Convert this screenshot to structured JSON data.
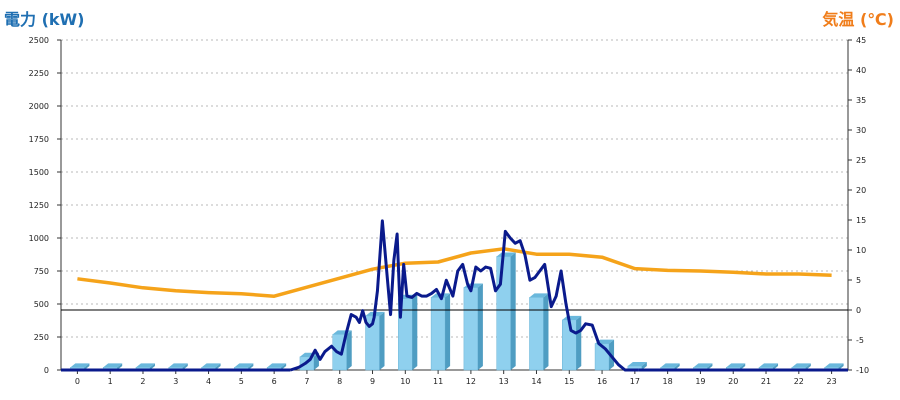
{
  "chart_data": {
    "type": "bar+line",
    "left_axis_title": "電力 (kW)",
    "right_axis_title": "気温 (℃)",
    "colors": {
      "left_title": "#1f6fb2",
      "right_title": "#f07d1a",
      "bars": "#7ec8e8",
      "power_line": "#0a1a8c",
      "temperature_line": "#f5a31a"
    },
    "ylim_left": [
      0,
      2500
    ],
    "ylim_right": [
      -10,
      45
    ],
    "yticks_left": [
      0,
      250,
      500,
      750,
      1000,
      1250,
      1500,
      1750,
      2000,
      2250,
      2500
    ],
    "yticks_right": [
      -10,
      -5,
      0,
      5,
      10,
      15,
      20,
      25,
      30,
      35,
      40,
      45
    ],
    "categories": [
      "0",
      "1",
      "2",
      "3",
      "4",
      "5",
      "6",
      "7",
      "8",
      "9",
      "10",
      "11",
      "12",
      "13",
      "14",
      "15",
      "16",
      "17",
      "18",
      "19",
      "20",
      "21",
      "22",
      "23"
    ],
    "grid": true,
    "bars": [
      20,
      20,
      20,
      20,
      20,
      20,
      20,
      100,
      270,
      410,
      540,
      550,
      625,
      860,
      550,
      380,
      200,
      30,
      20,
      20,
      20,
      20,
      20,
      20
    ],
    "power_line": {
      "x": [
        6.5,
        6.75,
        6.95,
        7.1,
        7.25,
        7.4,
        7.55,
        7.75,
        7.9,
        8.05,
        8.2,
        8.35,
        8.5,
        8.6,
        8.7,
        8.8,
        8.9,
        9.0,
        9.05,
        9.15,
        9.3,
        9.45,
        9.55,
        9.65,
        9.75,
        9.85,
        9.95,
        10.05,
        10.2,
        10.35,
        10.5,
        10.65,
        10.8,
        10.95,
        11.1,
        11.25,
        11.45,
        11.6,
        11.75,
        11.9,
        12.0,
        12.15,
        12.3,
        12.45,
        12.6,
        12.75,
        12.9,
        13.05,
        13.2,
        13.35,
        13.5,
        13.65,
        13.8,
        13.95,
        14.1,
        14.25,
        14.45,
        14.6,
        14.75,
        14.9,
        15.05,
        15.2,
        15.35,
        15.5,
        15.7,
        15.9,
        16.1,
        16.3,
        16.5,
        16.7,
        16.9,
        17.1
      ],
      "values": [
        0,
        20,
        50,
        80,
        150,
        80,
        140,
        180,
        140,
        120,
        280,
        420,
        400,
        360,
        450,
        360,
        330,
        350,
        400,
        600,
        1130,
        700,
        420,
        830,
        1030,
        400,
        800,
        560,
        550,
        580,
        560,
        560,
        580,
        610,
        540,
        680,
        560,
        750,
        800,
        650,
        600,
        780,
        750,
        780,
        770,
        600,
        650,
        1050,
        1000,
        960,
        980,
        870,
        680,
        700,
        750,
        800,
        480,
        560,
        750,
        500,
        300,
        280,
        300,
        350,
        340,
        200,
        160,
        100,
        40,
        0,
        0,
        0
      ]
    },
    "temperature_line": {
      "x": [
        0,
        1,
        2,
        3,
        4,
        5,
        6,
        7,
        8,
        9,
        10,
        11,
        12,
        13,
        14,
        15,
        16,
        17,
        18,
        19,
        20,
        21,
        22,
        23
      ],
      "values": [
        5.2,
        4.5,
        3.7,
        3.2,
        2.9,
        2.7,
        2.3,
        3.8,
        5.3,
        6.8,
        7.8,
        8.0,
        9.5,
        10.2,
        9.3,
        9.3,
        8.8,
        6.9,
        6.6,
        6.5,
        6.3,
        6.0,
        6.0,
        5.8
      ]
    }
  }
}
